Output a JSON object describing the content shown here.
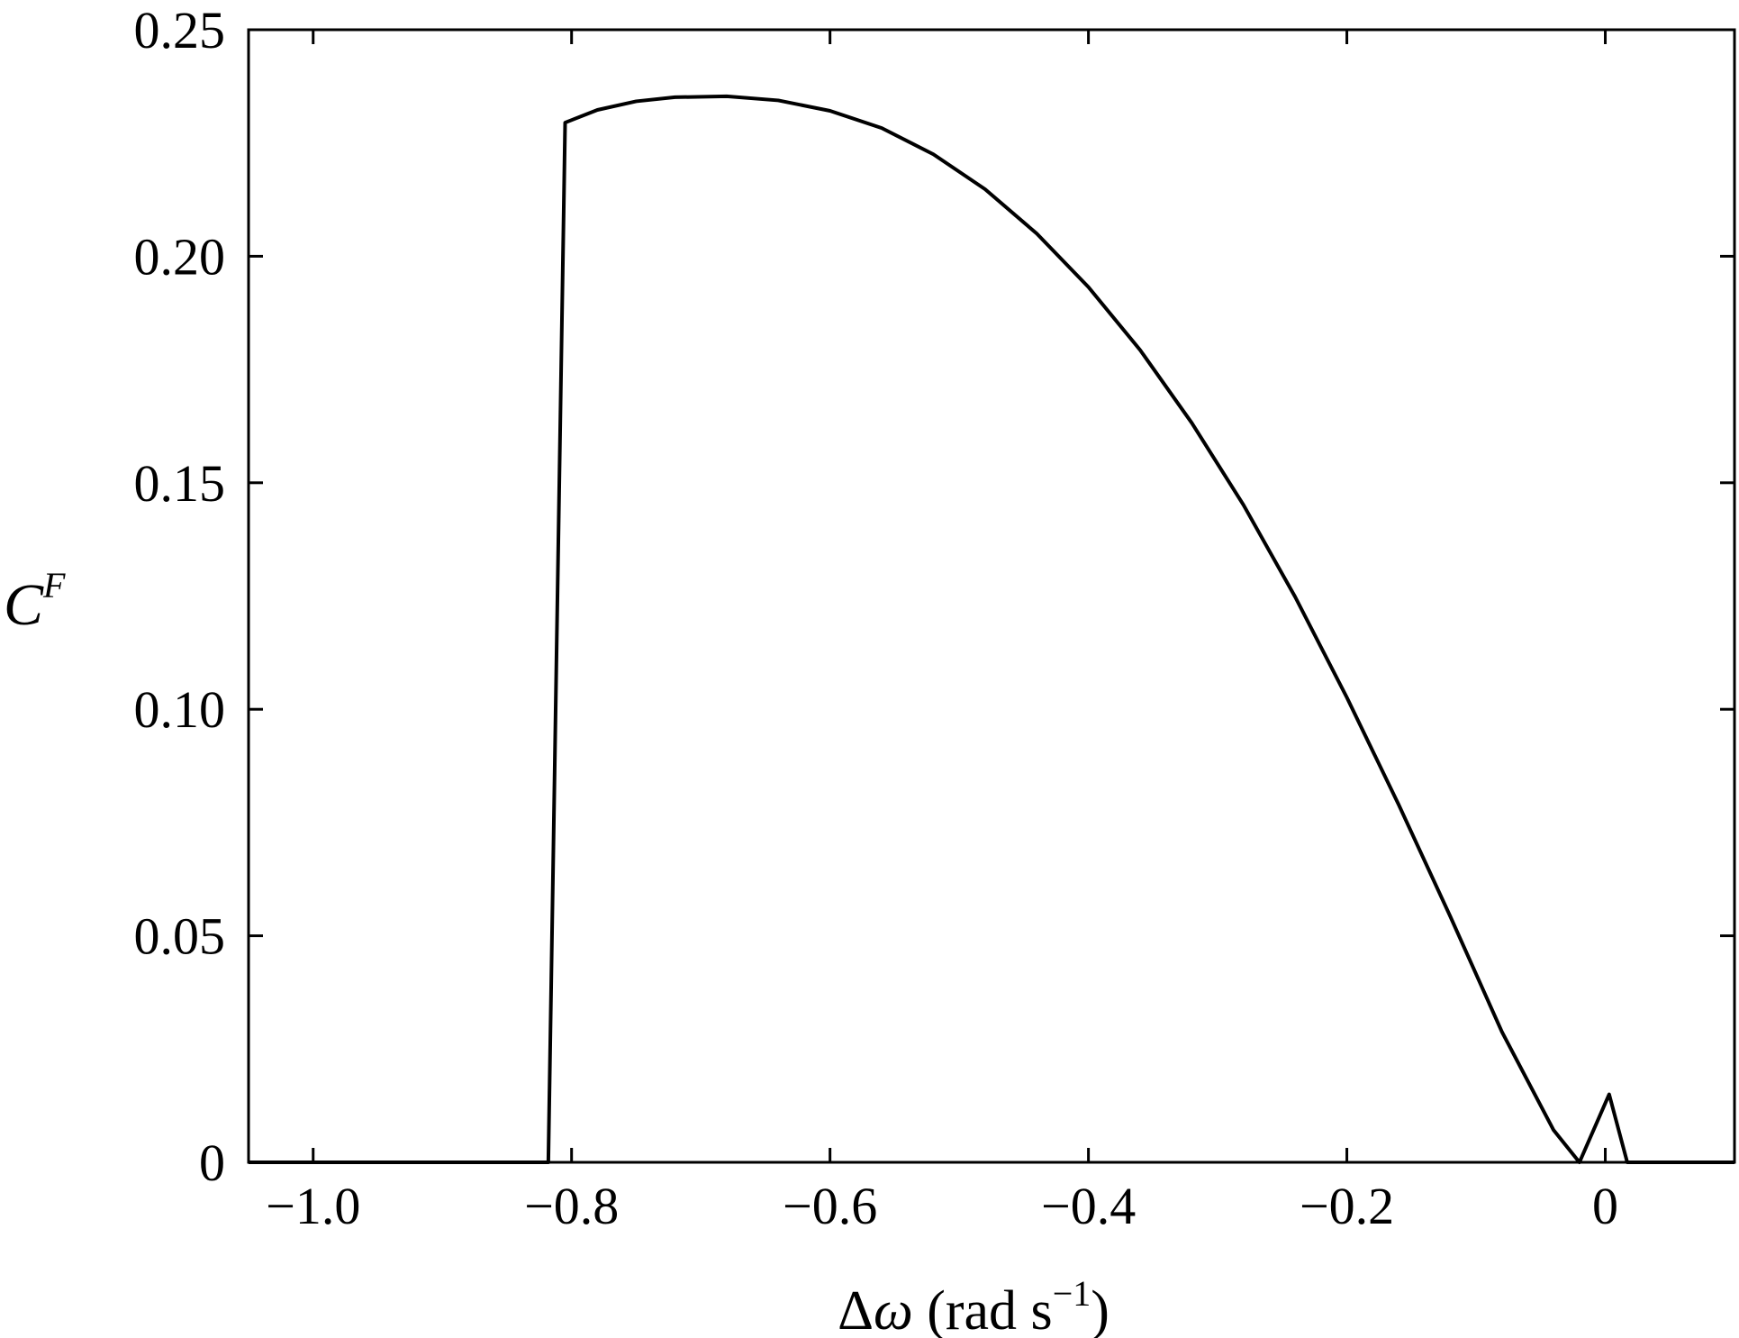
{
  "chart_data": {
    "type": "line",
    "xlabel_parts": {
      "symbol": "Δ",
      "variable": "ω",
      "unit_open": " (rad s",
      "exponent": "−1",
      "unit_close": ")"
    },
    "ylabel_parts": {
      "symbol": "C",
      "superscript": "F"
    },
    "xlim": [
      -1.05,
      0.1
    ],
    "ylim": [
      0,
      0.25
    ],
    "x_ticks": [
      -1.0,
      -0.8,
      -0.6,
      -0.4,
      -0.2,
      0.0
    ],
    "x_tick_labels": [
      "−1.0",
      "−0.8",
      "−0.6",
      "−0.4",
      "−0.2",
      "0"
    ],
    "y_ticks": [
      0,
      0.05,
      0.1,
      0.15,
      0.2,
      0.25
    ],
    "y_tick_labels": [
      "0",
      "0.05",
      "0.10",
      "0.15",
      "0.20",
      "0.25"
    ],
    "grid": false,
    "series": [
      {
        "color": "#000000",
        "x": [
          -1.05,
          -0.818,
          -0.805,
          -0.78,
          -0.75,
          -0.72,
          -0.68,
          -0.64,
          -0.6,
          -0.56,
          -0.52,
          -0.48,
          -0.44,
          -0.4,
          -0.36,
          -0.32,
          -0.28,
          -0.24,
          -0.2,
          -0.16,
          -0.12,
          -0.08,
          -0.04,
          -0.02,
          0.003,
          0.017,
          0.1
        ],
        "y": [
          0,
          0,
          0.2295,
          0.2323,
          0.2342,
          0.2351,
          0.2353,
          0.2344,
          0.2321,
          0.2283,
          0.2225,
          0.2148,
          0.205,
          0.1932,
          0.1793,
          0.1632,
          0.1451,
          0.1248,
          0.1026,
          0.079,
          0.0543,
          0.0288,
          0.0071,
          0.0,
          0.015,
          0.0,
          0
        ]
      }
    ]
  }
}
